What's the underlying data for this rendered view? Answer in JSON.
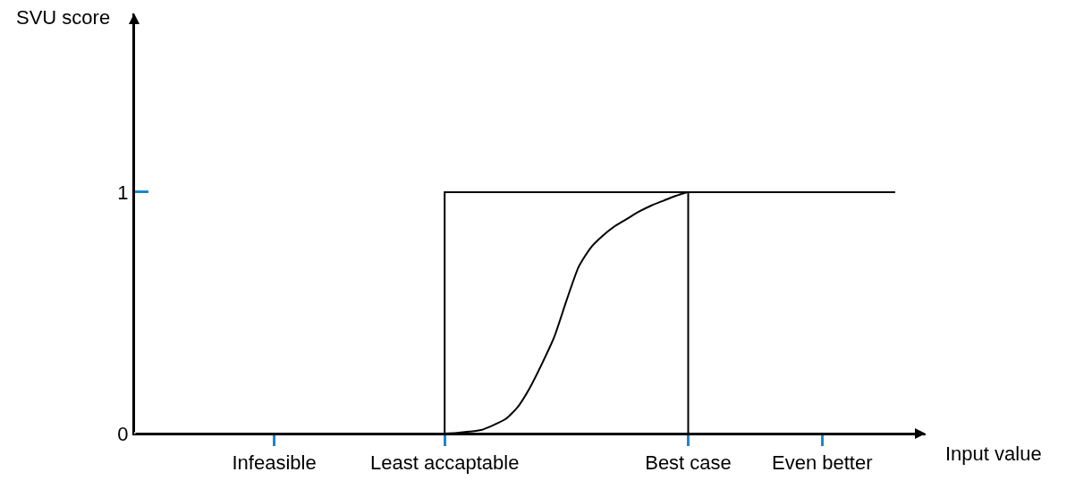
{
  "chart_data": {
    "type": "line",
    "xlabel": "Input value",
    "ylabel": "SVU score",
    "categories": [
      null,
      null,
      null,
      null,
      null,
      null,
      null,
      null,
      null,
      null,
      null,
      "Infeasible",
      null,
      null,
      null,
      null,
      null,
      null,
      null,
      null,
      null,
      null,
      null,
      null,
      null,
      "Least accaptable",
      null,
      null,
      null,
      null,
      null,
      null,
      null,
      null,
      null,
      null,
      null,
      null,
      null,
      null,
      null,
      null,
      null,
      null,
      null,
      "Best case",
      null,
      null,
      null,
      null,
      null,
      null,
      null,
      null,
      null,
      null,
      "Even better",
      null,
      null,
      null,
      null,
      null,
      null,
      null,
      null
    ],
    "ylim": [
      0,
      1.74
    ],
    "yticks": [
      0,
      1
    ],
    "series": [
      {
        "type": "step",
        "color": "#000000",
        "values": [
          0,
          0,
          0,
          0,
          0,
          0,
          0,
          0,
          0,
          0,
          0,
          0,
          0,
          0,
          0,
          0,
          0,
          0,
          0,
          0,
          0,
          0,
          0,
          0,
          0,
          1,
          1,
          1,
          1,
          1,
          1,
          1,
          1,
          1,
          1,
          1,
          1,
          1,
          1,
          1,
          1,
          1,
          1,
          1,
          1,
          1,
          1,
          1,
          1,
          1,
          1,
          1,
          1,
          1,
          1,
          1,
          1,
          1,
          1,
          1,
          1,
          1,
          1,
          null,
          null
        ]
      },
      {
        "type": "step",
        "color": "#000000",
        "values": [
          null,
          null,
          null,
          null,
          null,
          null,
          null,
          null,
          null,
          null,
          null,
          null,
          null,
          null,
          null,
          null,
          null,
          null,
          null,
          null,
          null,
          null,
          null,
          null,
          null,
          null,
          null,
          null,
          null,
          null,
          null,
          null,
          null,
          null,
          null,
          null,
          null,
          null,
          null,
          null,
          null,
          null,
          null,
          null,
          0,
          1,
          null,
          null,
          null,
          null,
          null,
          null,
          null,
          null,
          null,
          null,
          null,
          null,
          null,
          null,
          null,
          null,
          null,
          null,
          null
        ]
      },
      {
        "color": "#000000",
        "values": [
          null,
          null,
          null,
          null,
          null,
          null,
          null,
          null,
          null,
          null,
          null,
          null,
          null,
          null,
          null,
          null,
          null,
          null,
          null,
          null,
          null,
          null,
          null,
          null,
          null,
          0,
          0.003,
          0.008,
          0.015,
          0.035,
          0.06,
          0.11,
          0.19,
          0.29,
          0.4,
          0.55,
          0.69,
          0.77,
          0.82,
          0.86,
          0.89,
          0.92,
          0.945,
          0.965,
          0.985,
          1,
          null,
          null,
          null,
          null,
          null,
          null,
          null,
          null,
          null,
          null,
          null,
          null,
          null,
          null,
          null,
          null,
          null,
          null,
          null
        ]
      }
    ],
    "marker": "none",
    "line_style": "solid"
  }
}
